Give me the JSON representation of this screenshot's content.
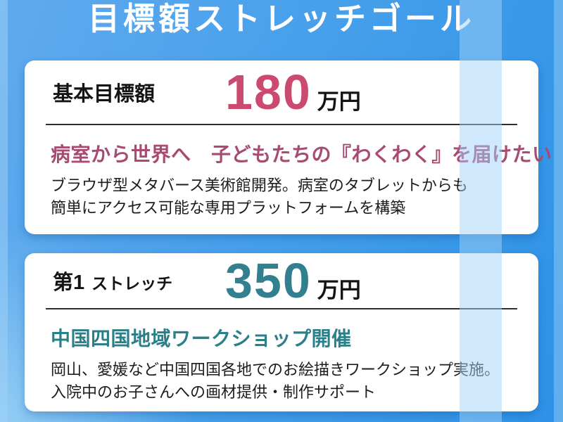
{
  "header": {
    "title": "目標額ストレッチゴール"
  },
  "palette": {
    "background_blue_light": "#60aaee",
    "background_blue_dark": "#2e92e8",
    "card_background": "#ffffff",
    "pink_accent": "#cb4a70",
    "pink_heading": "#a84a72",
    "teal_accent": "#327f90",
    "teal_heading": "#2b7f88",
    "text_dark": "#1d1d1d"
  },
  "cards": [
    {
      "label_big": "基本目標額",
      "label_small": "",
      "amount": "180",
      "unit": "万円",
      "amount_color": "#cb4a70",
      "heading": "病室から世界へ　子どもたちの『わくわく』を届けたい",
      "heading_color": "#a84a72",
      "body": [
        "ブラウザ型メタバース美術館開発。病室のタブレットからも",
        "簡単にアクセス可能な専用プラットフォームを構築"
      ]
    },
    {
      "label_big": "第1",
      "label_small": "ストレッチ",
      "amount": "350",
      "unit": "万円",
      "amount_color": "#327f90",
      "heading": "中国四国地域ワークショップ開催",
      "heading_color": "#2b7f88",
      "body": [
        "岡山、愛媛など中国四国各地でのお絵描きワークショップ実施。",
        "入院中のお子さんへの画材提供・制作サポート"
      ]
    }
  ]
}
